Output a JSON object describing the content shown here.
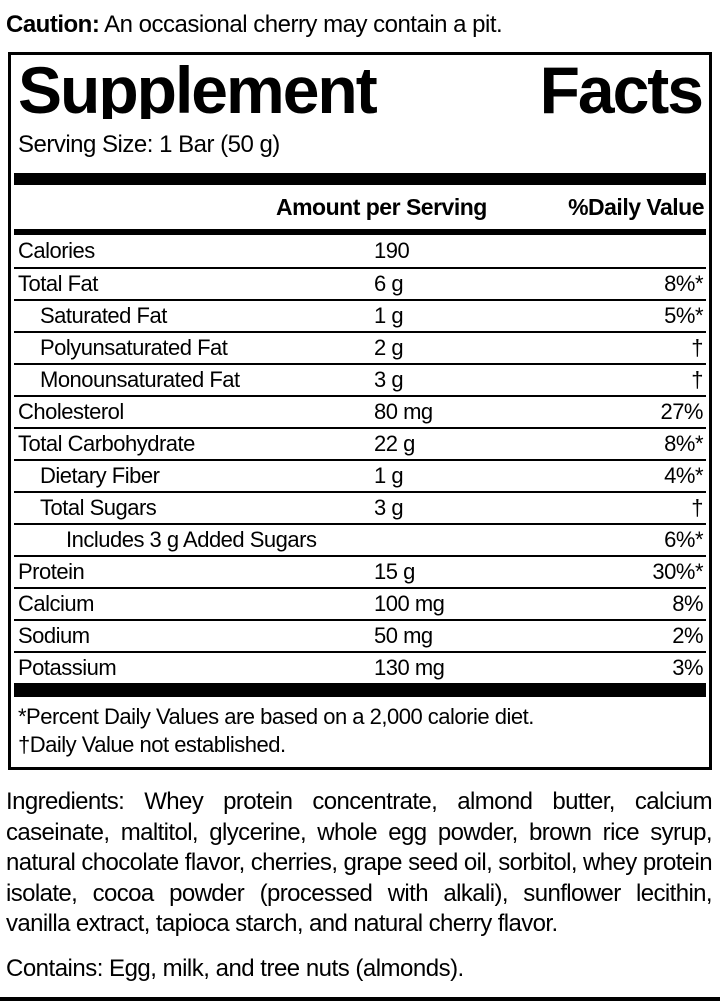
{
  "caution": {
    "label": "Caution:",
    "text": " An occasional cherry may contain a pit."
  },
  "facts": {
    "title_left": "Supplement",
    "title_right": "Facts",
    "serving_size": "Serving Size: 1 Bar (50 g)",
    "headers": {
      "amount": "Amount per Serving",
      "daily_value": "%Daily Value"
    },
    "rows": [
      {
        "name": "Calories",
        "amount": "190",
        "dv": "",
        "indent": 0
      },
      {
        "name": "Total Fat",
        "amount": "6 g",
        "dv": "8%*",
        "indent": 0
      },
      {
        "name": "Saturated Fat",
        "amount": "1 g",
        "dv": "5%*",
        "indent": 1
      },
      {
        "name": "Polyunsaturated Fat",
        "amount": "2 g",
        "dv": "†",
        "indent": 1
      },
      {
        "name": "Monounsaturated Fat",
        "amount": "3 g",
        "dv": "†",
        "indent": 1
      },
      {
        "name": "Cholesterol",
        "amount": "80 mg",
        "dv": "27%",
        "indent": 0
      },
      {
        "name": "Total Carbohydrate",
        "amount": "22 g",
        "dv": "8%*",
        "indent": 0
      },
      {
        "name": "Dietary Fiber",
        "amount": "1 g",
        "dv": "4%*",
        "indent": 1
      },
      {
        "name": "Total Sugars",
        "amount": "3 g",
        "dv": "†",
        "indent": 1
      },
      {
        "name": "Includes 3 g Added Sugars",
        "amount": "",
        "dv": "6%*",
        "indent": 2
      },
      {
        "name": "Protein",
        "amount": "15 g",
        "dv": "30%*",
        "indent": 0
      },
      {
        "name": "Calcium",
        "amount": "100 mg",
        "dv": "8%",
        "indent": 0
      },
      {
        "name": "Sodium",
        "amount": "50 mg",
        "dv": "2%",
        "indent": 0
      },
      {
        "name": "Potassium",
        "amount": "130 mg",
        "dv": "3%",
        "indent": 0
      }
    ],
    "footnotes": [
      "*Percent Daily Values are based on a 2,000 calorie diet.",
      "†Daily Value not established."
    ]
  },
  "ingredients": "Ingredients: Whey protein concentrate, almond butter, calcium caseinate, maltitol, glycerine, whole egg powder, brown rice syrup, natural chocolate flavor, cherries, grape seed oil, sorbitol, whey protein isolate, cocoa powder (processed with alkali), sunflower lecithin, vanilla extract, tapioca starch, and natural cherry flavor.",
  "contains": "Contains: Egg, milk, and tree nuts (almonds).",
  "footer_code": "09",
  "colors": {
    "text": "#000000",
    "background": "#ffffff"
  }
}
